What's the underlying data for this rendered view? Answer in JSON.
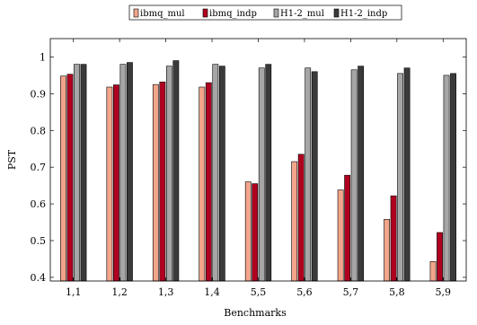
{
  "chart_data": {
    "type": "bar",
    "categories": [
      "1,1",
      "1,2",
      "1,3",
      "1,4",
      "5,5",
      "5,6",
      "5,7",
      "5,8",
      "5,9"
    ],
    "series": [
      {
        "name": "ibmq_mul",
        "color": "#f2a58a",
        "values": [
          0.948,
          0.918,
          0.925,
          0.918,
          0.66,
          0.715,
          0.638,
          0.558,
          0.443
        ]
      },
      {
        "name": "ibmq_indp",
        "color": "#b00020",
        "values": [
          0.953,
          0.924,
          0.932,
          0.93,
          0.655,
          0.735,
          0.678,
          0.622,
          0.522
        ]
      },
      {
        "name": "H1-2_mul",
        "color": "#a6a6a6",
        "values": [
          0.98,
          0.98,
          0.975,
          0.98,
          0.97,
          0.97,
          0.965,
          0.955,
          0.95
        ]
      },
      {
        "name": "H1-2_indp",
        "color": "#3a3a3a",
        "values": [
          0.98,
          0.985,
          0.99,
          0.975,
          0.98,
          0.96,
          0.975,
          0.97,
          0.955
        ]
      }
    ],
    "legend_labels": [
      "ibmq_mul",
      "ibmq_indp",
      "H1-2_mul",
      "H1-2_indp"
    ],
    "xlabel": "Benchmarks",
    "ylabel": "PST",
    "ylim": [
      0.39,
      1.05
    ],
    "yticks": [
      0.4,
      0.5,
      0.6,
      0.7,
      0.8,
      0.9,
      1
    ],
    "ytick_labels": [
      "0.4",
      "0.5",
      "0.6",
      "0.7",
      "0.8",
      "0.9",
      "1"
    ],
    "grid": false,
    "legend_position": "top-center"
  }
}
